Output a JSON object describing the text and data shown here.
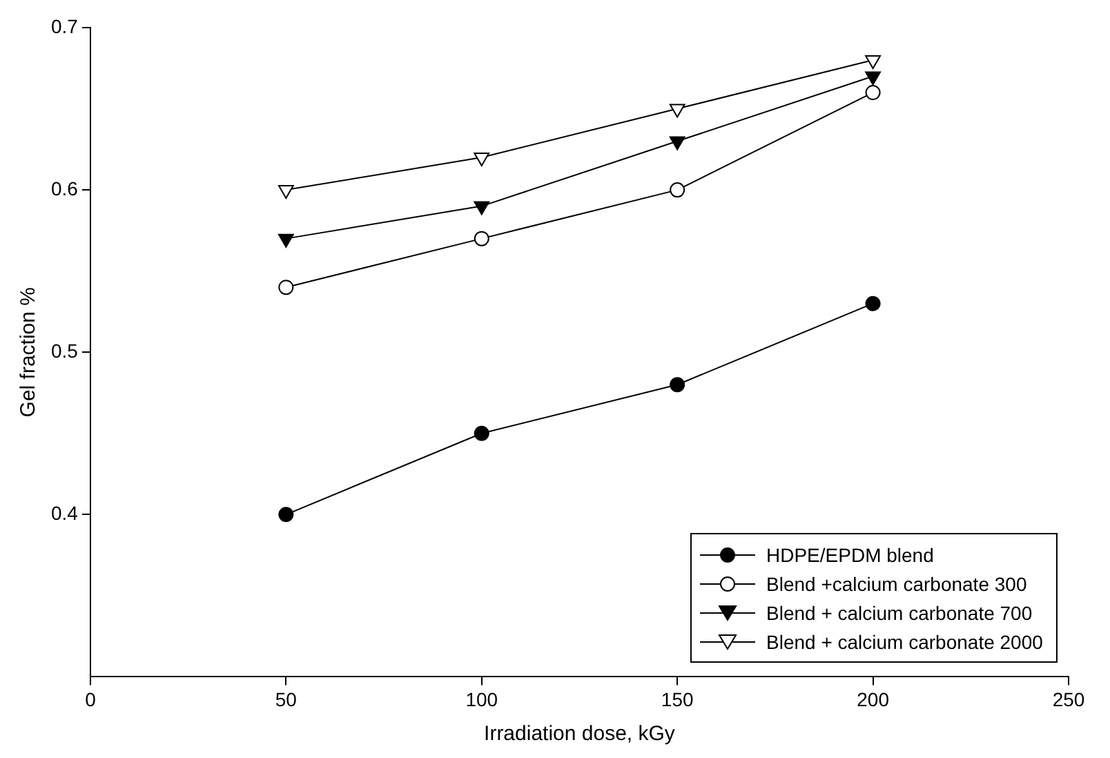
{
  "chart_data": {
    "type": "line",
    "xlabel": "Irradiation dose, kGy",
    "ylabel": "Gel fraction %",
    "x": [
      50,
      100,
      150,
      200
    ],
    "series": [
      {
        "name": "HDPE/EPDM blend",
        "color": "#000000",
        "marker": "circle",
        "values": [
          0.4,
          0.45,
          0.48,
          0.53
        ]
      },
      {
        "name": "Blend +calcium carbonate 300",
        "color": "#ffffff",
        "marker": "circle",
        "values": [
          0.54,
          0.57,
          0.6,
          0.66
        ]
      },
      {
        "name": "Blend + calcium carbonate 700",
        "color": "#000000",
        "marker": "triangle",
        "values": [
          0.57,
          0.59,
          0.63,
          0.67
        ]
      },
      {
        "name": "Blend + calcium carbonate 2000",
        "color": "#ffffff",
        "marker": "triangle",
        "values": [
          0.6,
          0.62,
          0.65,
          0.68
        ]
      }
    ],
    "xlim": [
      0,
      250
    ],
    "xticks": [
      0,
      50,
      100,
      150,
      200,
      250
    ],
    "ylim": [
      0.3,
      0.7
    ],
    "yticks": [
      0.4,
      0.5,
      0.6,
      0.7
    ],
    "grid": false,
    "legend": "bottom right",
    "line_style": "solid"
  }
}
